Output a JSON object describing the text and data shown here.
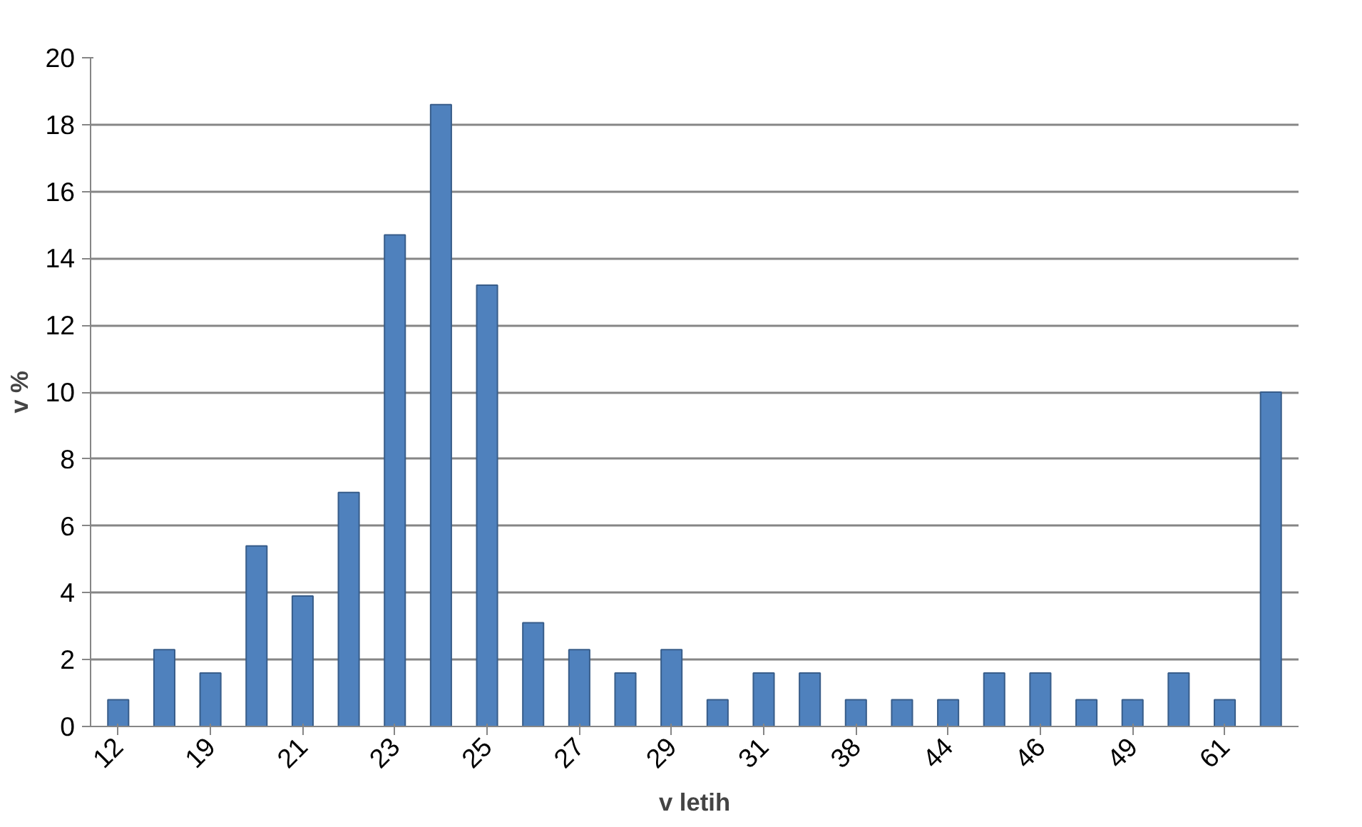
{
  "chart_data": {
    "type": "bar",
    "xlabel": "v letih",
    "ylabel": "v %",
    "categories": [
      "12",
      null,
      "19",
      null,
      "21",
      null,
      "23",
      null,
      "25",
      null,
      "27",
      null,
      "29",
      null,
      "31",
      null,
      "38",
      null,
      "44",
      null,
      "46",
      null,
      "49",
      null,
      "61",
      null
    ],
    "values": [
      0.8,
      2.3,
      1.6,
      5.4,
      3.9,
      7.0,
      14.7,
      18.6,
      13.2,
      3.1,
      2.3,
      1.6,
      2.3,
      0.8,
      1.6,
      1.6,
      0.8,
      0.8,
      0.8,
      1.6,
      1.6,
      0.8,
      0.8,
      1.6,
      0.8,
      10.0
    ],
    "color": "#4f81bd",
    "ylim": [
      0,
      20
    ],
    "yticks": [
      0,
      2,
      4,
      6,
      8,
      10,
      12,
      14,
      16,
      18,
      20
    ],
    "grid": "y"
  }
}
